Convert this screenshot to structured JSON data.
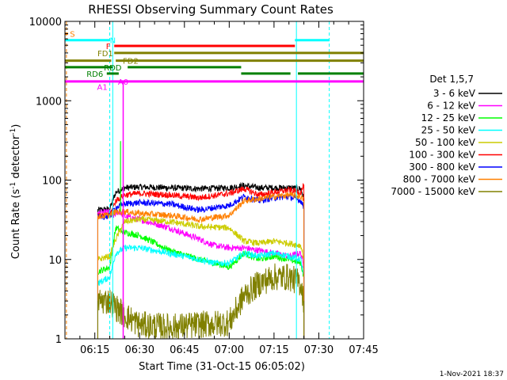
{
  "chart_data": {
    "type": "line",
    "title": "RHESSI Observing Summary Count Rates",
    "xlabel": "Start Time (31-Oct-15 06:05:02)",
    "ylabel_main": "Count Rate (s",
    "ylabel_sup": "-1",
    "ylabel_tail": " detector",
    "ylabel_end": ")",
    "x_tick_labels": [
      "06:15",
      "06:30",
      "06:45",
      "07:00",
      "07:15",
      "07:30",
      "07:45"
    ],
    "x_ticks_min": [
      15,
      30,
      45,
      60,
      75,
      90,
      105
    ],
    "xlim_min": [
      5,
      105
    ],
    "y_scale": "log",
    "ylim": [
      1,
      10000
    ],
    "y_tick_labels": [
      "1",
      "10",
      "100",
      "1000",
      "10000"
    ],
    "y_ticks": [
      1,
      10,
      100,
      1000,
      10000
    ],
    "legend_title": "Det 1,5,7",
    "legend_placement": "right",
    "footer": "1-Nov-2021 18:37",
    "vlines": [
      {
        "t": 5.5,
        "color": "#ff8000",
        "style": "dash"
      },
      {
        "t": 20.0,
        "color": "#00ffff",
        "style": "dash"
      },
      {
        "t": 21.0,
        "color": "#00ffff",
        "style": "solid"
      },
      {
        "t": 82.5,
        "color": "#00ffff",
        "style": "solid"
      },
      {
        "t": 93.5,
        "color": "#00ffff",
        "style": "dash"
      }
    ],
    "flags": [
      {
        "label": "S",
        "color": "#ff8000",
        "y": 7000,
        "segments": [
          [
            5,
            6
          ]
        ],
        "label_t": 7.5,
        "label_y": 7000
      },
      {
        "label": "N",
        "color": "#00ffff",
        "y": 5800,
        "segments": [
          [
            5,
            20
          ],
          [
            82,
            93.5
          ]
        ],
        "label_t": 21,
        "label_y": 5800
      },
      {
        "label": "F",
        "color": "#ff0000",
        "y": 4900,
        "segments": [
          [
            21.5,
            82
          ]
        ],
        "label_t": 19.5,
        "label_y": 4900
      },
      {
        "label": "FD1",
        "color": "#808000",
        "y": 4000,
        "segments": [
          [
            21.5,
            105
          ]
        ],
        "label_t": 18.5,
        "label_y": 4000
      },
      {
        "label": "FD2",
        "color": "#808000",
        "y": 3200,
        "segments": [
          [
            5,
            20.5
          ],
          [
            22,
            105
          ]
        ],
        "label_t": 27,
        "label_y": 3200
      },
      {
        "label": "RDD",
        "color": "#008000",
        "y": 2650,
        "segments": [
          [
            5,
            21
          ],
          [
            26,
            64
          ]
        ],
        "label_t": 21,
        "label_y": 2650
      },
      {
        "label": "RD6",
        "color": "#008000",
        "y": 2200,
        "segments": [
          [
            19,
            23
          ],
          [
            64,
            80.5
          ],
          [
            83,
            105
          ]
        ],
        "label_t": 15,
        "label_y": 2200
      },
      {
        "label": "A1",
        "color": "#ff00ff",
        "y": 1750,
        "segments": [
          [
            5,
            105
          ]
        ],
        "label_t": 17.5,
        "label_y": 1500
      },
      {
        "label": "A0",
        "color": "#ff00ff",
        "y": 1750,
        "segments": [],
        "label_t": 24.5,
        "label_y": 1750
      }
    ],
    "series": [
      {
        "name": "3 - 6 keV",
        "color": "#000000",
        "points": [
          [
            16,
            42
          ],
          [
            20,
            43
          ],
          [
            22,
            70
          ],
          [
            25,
            80
          ],
          [
            30,
            82
          ],
          [
            40,
            80
          ],
          [
            50,
            78
          ],
          [
            60,
            80
          ],
          [
            65,
            85
          ],
          [
            70,
            80
          ],
          [
            80,
            80
          ],
          [
            84,
            78
          ],
          [
            85,
            60
          ]
        ]
      },
      {
        "name": "6 - 12 keV",
        "color": "#ff00ff",
        "points": [
          [
            16,
            38
          ],
          [
            20,
            40
          ],
          [
            21,
            35
          ],
          [
            23,
            40
          ],
          [
            25,
            35
          ],
          [
            30,
            32
          ],
          [
            40,
            25
          ],
          [
            50,
            18
          ],
          [
            55,
            15
          ],
          [
            60,
            14
          ],
          [
            65,
            14
          ],
          [
            70,
            13
          ],
          [
            75,
            12
          ],
          [
            80,
            11
          ],
          [
            84,
            12
          ],
          [
            85,
            8
          ]
        ]
      },
      {
        "name": "12 - 25 keV",
        "color": "#00ff00",
        "points": [
          [
            16,
            7
          ],
          [
            20,
            8
          ],
          [
            22,
            25
          ],
          [
            25,
            22
          ],
          [
            30,
            20
          ],
          [
            40,
            13
          ],
          [
            50,
            10
          ],
          [
            55,
            9
          ],
          [
            60,
            8
          ],
          [
            65,
            12
          ],
          [
            70,
            10
          ],
          [
            75,
            11
          ],
          [
            80,
            10
          ],
          [
            84,
            9
          ],
          [
            85,
            6
          ]
        ]
      },
      {
        "name": "25 - 50 keV",
        "color": "#00ffff",
        "points": [
          [
            16,
            5
          ],
          [
            20,
            6
          ],
          [
            22,
            12
          ],
          [
            25,
            14
          ],
          [
            30,
            14
          ],
          [
            40,
            12
          ],
          [
            50,
            10
          ],
          [
            55,
            9
          ],
          [
            60,
            9
          ],
          [
            65,
            12
          ],
          [
            70,
            11
          ],
          [
            75,
            12
          ],
          [
            80,
            11
          ],
          [
            84,
            10
          ],
          [
            85,
            6
          ]
        ]
      },
      {
        "name": "50 - 100 keV",
        "color": "#cccc00",
        "points": [
          [
            16,
            10
          ],
          [
            20,
            11
          ],
          [
            22,
            18
          ],
          [
            25,
            30
          ],
          [
            30,
            32
          ],
          [
            40,
            30
          ],
          [
            50,
            26
          ],
          [
            60,
            25
          ],
          [
            65,
            17
          ],
          [
            70,
            16
          ],
          [
            75,
            17
          ],
          [
            80,
            16
          ],
          [
            84,
            15
          ],
          [
            85,
            10
          ]
        ]
      },
      {
        "name": "100 - 300 keV",
        "color": "#ff0000",
        "points": [
          [
            16,
            35
          ],
          [
            20,
            36
          ],
          [
            22,
            55
          ],
          [
            25,
            65
          ],
          [
            30,
            68
          ],
          [
            40,
            65
          ],
          [
            50,
            60
          ],
          [
            60,
            68
          ],
          [
            65,
            78
          ],
          [
            70,
            65
          ],
          [
            75,
            70
          ],
          [
            80,
            75
          ],
          [
            84,
            70
          ],
          [
            85,
            88
          ]
        ]
      },
      {
        "name": "300 - 800 keV",
        "color": "#0000ff",
        "points": [
          [
            16,
            34
          ],
          [
            20,
            35
          ],
          [
            22,
            45
          ],
          [
            25,
            50
          ],
          [
            30,
            52
          ],
          [
            40,
            50
          ],
          [
            50,
            42
          ],
          [
            60,
            48
          ],
          [
            65,
            62
          ],
          [
            70,
            55
          ],
          [
            75,
            60
          ],
          [
            80,
            62
          ],
          [
            84,
            55
          ],
          [
            85,
            45
          ]
        ]
      },
      {
        "name": "800 - 7000 keV",
        "color": "#ff8000",
        "points": [
          [
            16,
            35
          ],
          [
            20,
            36
          ],
          [
            22,
            40
          ],
          [
            25,
            40
          ],
          [
            30,
            38
          ],
          [
            40,
            36
          ],
          [
            50,
            32
          ],
          [
            60,
            36
          ],
          [
            65,
            55
          ],
          [
            70,
            58
          ],
          [
            75,
            62
          ],
          [
            80,
            65
          ],
          [
            84,
            62
          ],
          [
            85,
            55
          ]
        ]
      },
      {
        "name": "7000 - 15000 keV",
        "color": "#808000",
        "points": [
          [
            16,
            3
          ],
          [
            20,
            3
          ],
          [
            22,
            2.5
          ],
          [
            25,
            2
          ],
          [
            30,
            1.5
          ],
          [
            40,
            1.4
          ],
          [
            50,
            1.5
          ],
          [
            60,
            1.6
          ],
          [
            65,
            3.5
          ],
          [
            70,
            5
          ],
          [
            75,
            6
          ],
          [
            80,
            6
          ],
          [
            84,
            5
          ],
          [
            85,
            3
          ]
        ]
      }
    ]
  }
}
